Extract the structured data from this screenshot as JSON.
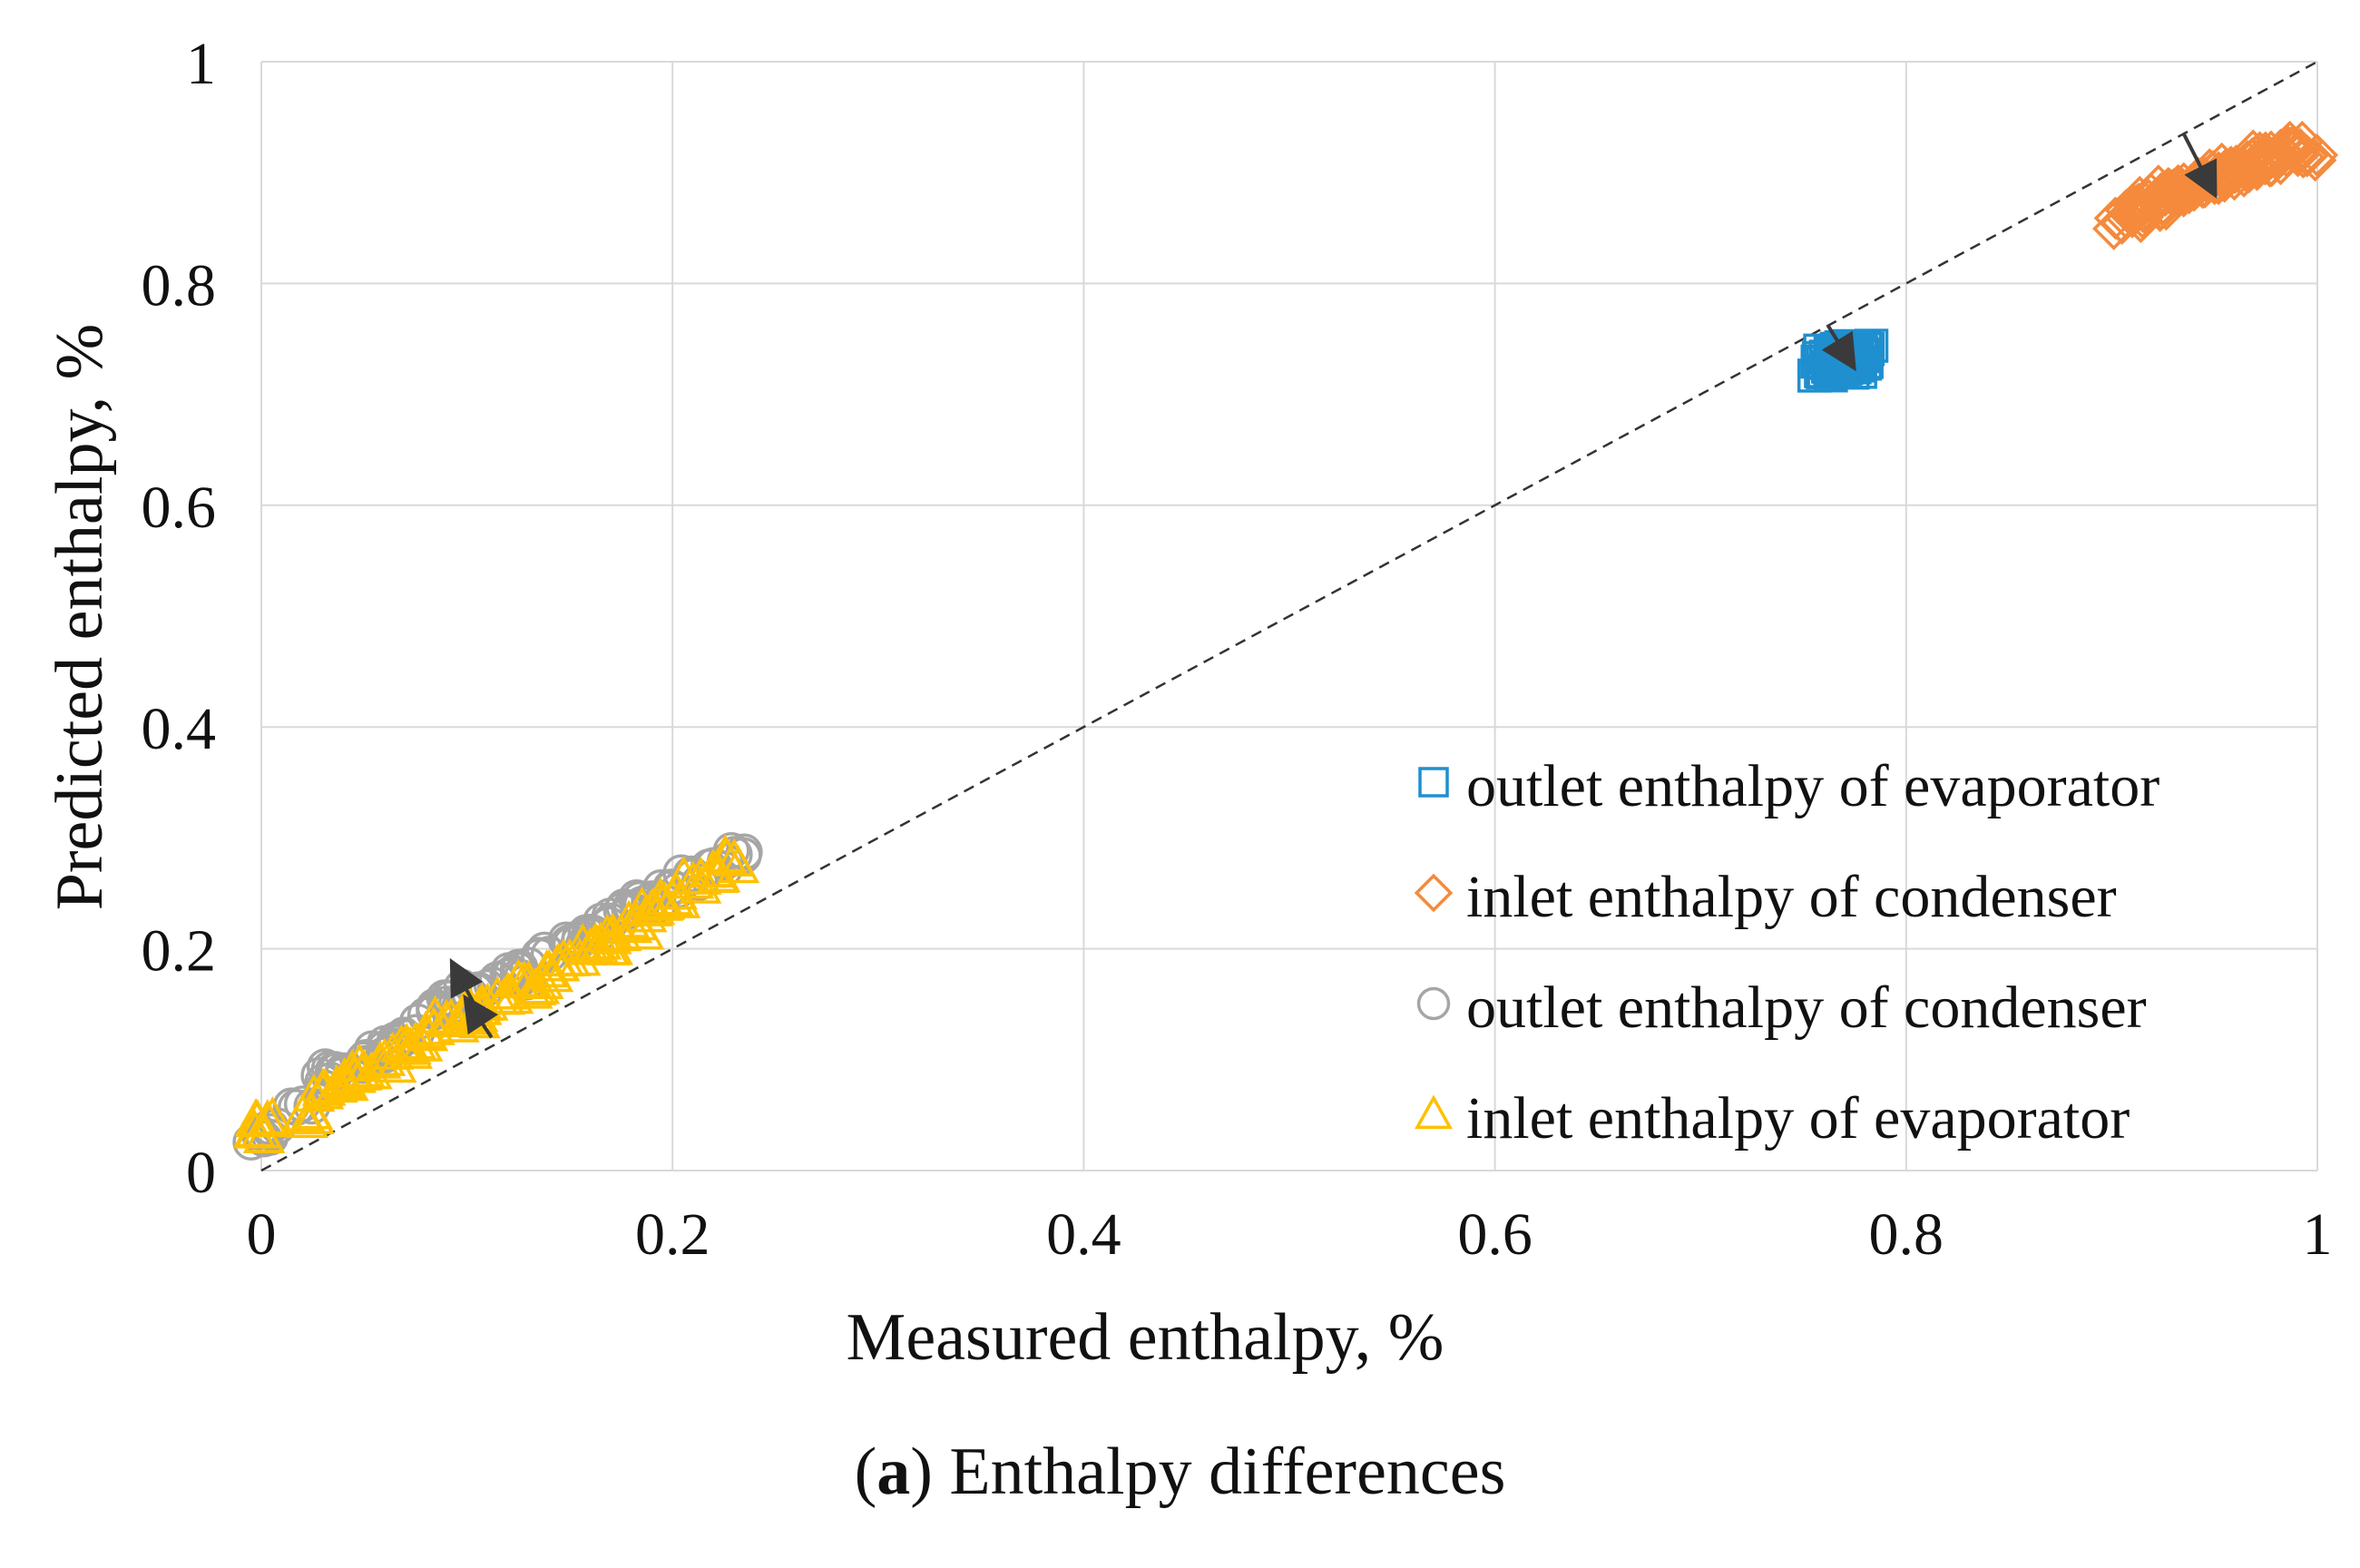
{
  "chart_data": {
    "type": "scatter",
    "title": "",
    "xlabel": "Measured enthalpy, %",
    "ylabel": "Predicted enthalpy, %",
    "xlim": [
      0,
      1
    ],
    "ylim": [
      0,
      1
    ],
    "xticks": [
      "0",
      "0.2",
      "0.4",
      "0.6",
      "0.8",
      "1"
    ],
    "yticks": [
      "0",
      "0.2",
      "0.4",
      "0.6",
      "0.8",
      "1"
    ],
    "grid": true,
    "reference_line": {
      "x": [
        0,
        1
      ],
      "y": [
        0,
        1
      ],
      "style": "dashed"
    },
    "legend_position": "bottom-right",
    "series": [
      {
        "name": "outlet enthalpy of evaporator",
        "marker": "square",
        "color": "#1f8fcf",
        "x": [
          0.76,
          0.762,
          0.765,
          0.768,
          0.77,
          0.772,
          0.775,
          0.778,
          0.78,
          0.764,
          0.767,
          0.771,
          0.774,
          0.777,
          0.761,
          0.769,
          0.773,
          0.776
        ],
        "y": [
          0.72,
          0.725,
          0.73,
          0.735,
          0.74,
          0.728,
          0.733,
          0.738,
          0.742,
          0.722,
          0.737,
          0.724,
          0.731,
          0.726,
          0.734,
          0.729,
          0.739,
          0.732
        ],
        "arrow": {
          "from": [
            0.762,
            0.762
          ],
          "to": [
            0.772,
            0.732
          ]
        }
      },
      {
        "name": "inlet enthalpy of condenser",
        "marker": "diamond",
        "color": "#f58a3c",
        "x": [
          0.905,
          0.91,
          0.915,
          0.92,
          0.925,
          0.93,
          0.935,
          0.94,
          0.945,
          0.95,
          0.955,
          0.96,
          0.965,
          0.97,
          0.975,
          0.98,
          0.985,
          0.99,
          0.995,
          0.912,
          0.928,
          0.942,
          0.958,
          0.972,
          0.988,
          0.918,
          0.935,
          0.952,
          0.968,
          0.982
        ],
        "y": [
          0.855,
          0.86,
          0.865,
          0.87,
          0.872,
          0.878,
          0.88,
          0.884,
          0.888,
          0.89,
          0.895,
          0.9,
          0.902,
          0.905,
          0.91,
          0.912,
          0.915,
          0.918,
          0.915,
          0.87,
          0.885,
          0.895,
          0.905,
          0.918,
          0.922,
          0.875,
          0.89,
          0.9,
          0.912,
          0.92
        ],
        "arrow": {
          "from": [
            0.935,
            0.935
          ],
          "to": [
            0.948,
            0.888
          ]
        }
      },
      {
        "name": "outlet enthalpy of condenser",
        "marker": "circle",
        "color": "#a6a6a6",
        "x": [
          0.0,
          0.005,
          0.02,
          0.03,
          0.04,
          0.05,
          0.06,
          0.07,
          0.08,
          0.09,
          0.1,
          0.11,
          0.12,
          0.13,
          0.14,
          0.15,
          0.16,
          0.17,
          0.18,
          0.19,
          0.2,
          0.21,
          0.22,
          0.23,
          0.035,
          0.065,
          0.095,
          0.125,
          0.155,
          0.185
        ],
        "y": [
          0.03,
          0.035,
          0.06,
          0.08,
          0.09,
          0.1,
          0.11,
          0.12,
          0.14,
          0.15,
          0.16,
          0.165,
          0.175,
          0.185,
          0.195,
          0.205,
          0.215,
          0.225,
          0.235,
          0.245,
          0.255,
          0.265,
          0.275,
          0.285,
          0.09,
          0.115,
          0.15,
          0.175,
          0.21,
          0.24
        ]
      },
      {
        "name": "inlet enthalpy of evaporator",
        "marker": "triangle",
        "color": "#ffc000",
        "x": [
          0.0,
          0.003,
          0.02,
          0.03,
          0.04,
          0.05,
          0.06,
          0.07,
          0.08,
          0.09,
          0.1,
          0.11,
          0.12,
          0.13,
          0.14,
          0.15,
          0.16,
          0.17,
          0.18,
          0.19,
          0.2,
          0.21,
          0.22,
          0.23,
          0.045,
          0.075,
          0.105,
          0.135,
          0.165,
          0.195
        ],
        "y": [
          0.035,
          0.045,
          0.05,
          0.07,
          0.08,
          0.09,
          0.1,
          0.11,
          0.125,
          0.135,
          0.145,
          0.15,
          0.16,
          0.17,
          0.18,
          0.19,
          0.2,
          0.21,
          0.22,
          0.235,
          0.245,
          0.26,
          0.27,
          0.28,
          0.085,
          0.115,
          0.14,
          0.165,
          0.205,
          0.24
        ],
        "arrow": {
          "from": [
            0.105,
            0.145
          ],
          "to": [
            0.095,
            0.18
          ]
        }
      }
    ],
    "extra_arrows": [
      {
        "from": [
          0.112,
          0.12
        ],
        "to": [
          0.102,
          0.148
        ]
      }
    ]
  },
  "caption": {
    "label": "a",
    "text": "Enthalpy differences"
  }
}
